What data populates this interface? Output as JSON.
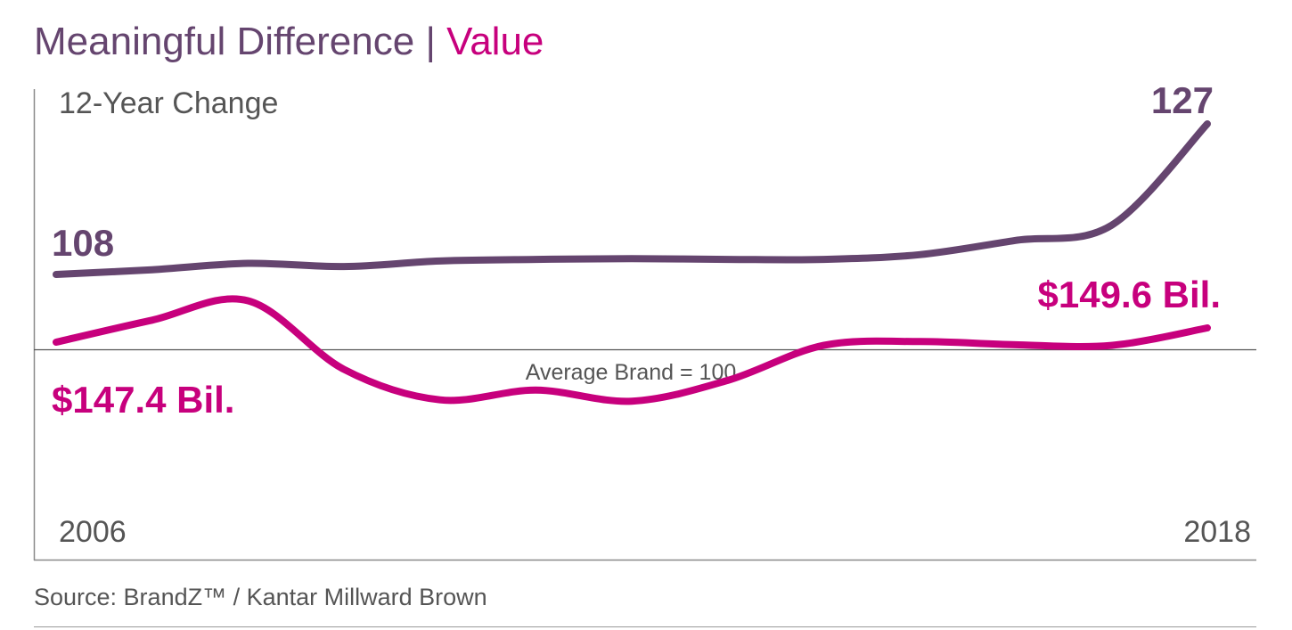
{
  "header": {
    "title_main": "Meaningful Difference",
    "title_sep": "|",
    "title_accent": "Value"
  },
  "source": "Source: BrandZ™ / Kantar Millward Brown",
  "colors": {
    "difference": "#65456f",
    "value": "#c7007d",
    "axis": "#8a8a8a",
    "text": "#555555"
  },
  "chart_data": {
    "type": "line",
    "subtitle": "12-Year Change",
    "x": [
      2006,
      2007,
      2008,
      2009,
      2010,
      2011,
      2012,
      2013,
      2014,
      2015,
      2016,
      2017,
      2018
    ],
    "xlim": [
      2006,
      2018
    ],
    "x_tick_labels": [
      "2006",
      "2018"
    ],
    "baseline": {
      "value": 100,
      "label": "Average Brand = 100"
    },
    "grid": false,
    "series": [
      {
        "key": "difference",
        "values": [
          108,
          108.6,
          109.4,
          109.0,
          109.7,
          109.9,
          110.0,
          109.9,
          109.9,
          110.5,
          112.3,
          114.2,
          127
        ],
        "start_label": "108",
        "end_label": "127"
      },
      {
        "key": "value",
        "values": [
          147.4,
          150.8,
          153.8,
          143.2,
          138.5,
          140.0,
          138.3,
          141.5,
          146.9,
          147.5,
          147.0,
          146.9,
          149.6
        ],
        "start_label": "$147.4 Bil.",
        "end_label": "$149.6 Bil."
      }
    ]
  }
}
